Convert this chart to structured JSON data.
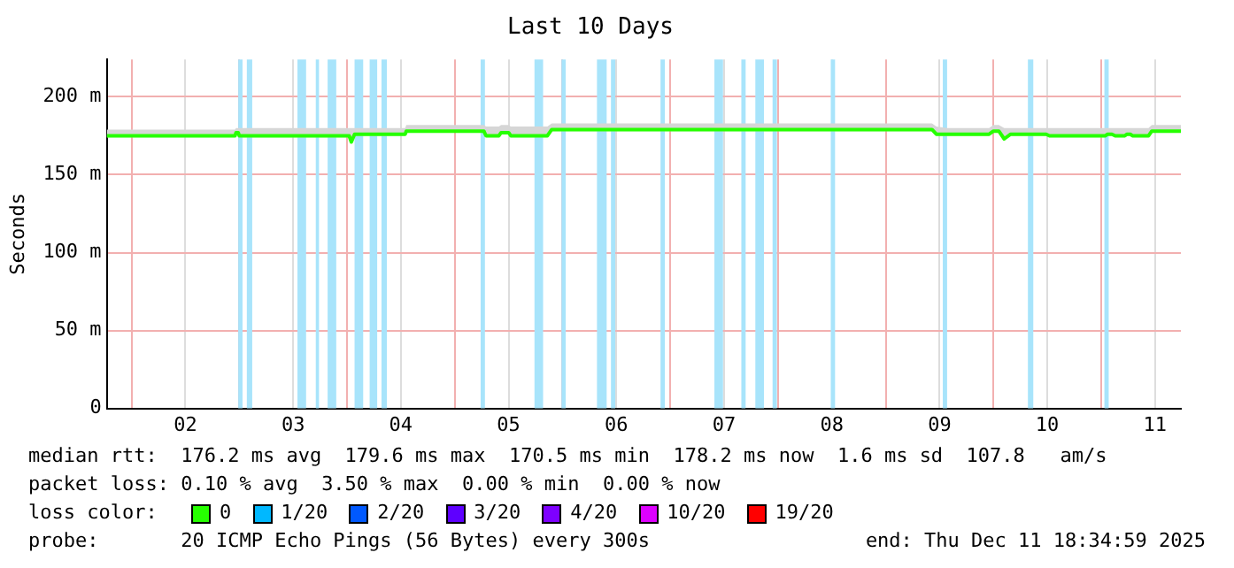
{
  "chart_data": {
    "type": "line",
    "title": "Last 10 Days",
    "ylabel": "Seconds",
    "legend_title": "loss color:",
    "legend": "bottom",
    "xlim": [
      1.77,
      11.74
    ],
    "xticks": [
      {
        "value": 2,
        "label": null
      },
      {
        "value": 2.5,
        "label": "02"
      },
      {
        "value": 3,
        "label": null
      },
      {
        "value": 3.5,
        "label": "03"
      },
      {
        "value": 4,
        "label": null
      },
      {
        "value": 4.5,
        "label": "04"
      },
      {
        "value": 5,
        "label": null
      },
      {
        "value": 5.5,
        "label": "05"
      },
      {
        "value": 6,
        "label": null
      },
      {
        "value": 6.5,
        "label": "06"
      },
      {
        "value": 7,
        "label": null
      },
      {
        "value": 7.5,
        "label": "07"
      },
      {
        "value": 8,
        "label": null
      },
      {
        "value": 8.5,
        "label": "08"
      },
      {
        "value": 9,
        "label": null
      },
      {
        "value": 9.5,
        "label": "09"
      },
      {
        "value": 10,
        "label": null
      },
      {
        "value": 10.5,
        "label": "10"
      },
      {
        "value": 11,
        "label": null
      },
      {
        "value": 11.5,
        "label": "11"
      }
    ],
    "ylim": [
      0,
      224
    ],
    "yticks": [
      0,
      {
        "value": 50,
        "label": "50 m"
      },
      {
        "value": 100,
        "label": "100 m"
      },
      {
        "value": 150,
        "label": "150 m"
      },
      {
        "value": 200,
        "label": "200 m"
      }
    ],
    "grid": true,
    "series": [
      {
        "name": "0",
        "color": "#26ff00",
        "x": [
          1.77,
          2.96,
          2.97,
          2.99,
          3.0,
          4.02,
          4.04,
          4.07,
          4.54,
          4.55,
          5.27,
          5.29,
          5.41,
          5.43,
          5.5,
          5.52,
          5.86,
          5.9,
          9.43,
          9.47,
          9.57,
          9.96,
          10.0,
          10.05,
          10.1,
          10.16,
          10.49,
          10.52,
          11.04,
          11.06,
          11.1,
          11.13,
          11.22,
          11.24,
          11.27,
          11.29,
          11.44,
          11.47,
          11.74
        ],
        "values": [
          175,
          175,
          177,
          177,
          175,
          175,
          171,
          176,
          176,
          178,
          178,
          175,
          175,
          177,
          177,
          175,
          175,
          179,
          179,
          176,
          176,
          176,
          178,
          178,
          173,
          176,
          176,
          175,
          175,
          176,
          176,
          175,
          175,
          176,
          176,
          175,
          175,
          178,
          178
        ],
        "lower": [
          174,
          174,
          176,
          176,
          174,
          174,
          170,
          175,
          175,
          177,
          177,
          174,
          174,
          176,
          176,
          174,
          174,
          178,
          178,
          175,
          175,
          175,
          177,
          177,
          172,
          175,
          175,
          174,
          174,
          175,
          175,
          174,
          174,
          175,
          175,
          174,
          174,
          177,
          177
        ],
        "upper": [
          179,
          179,
          180,
          180,
          180,
          180,
          180,
          180,
          180,
          182,
          182,
          181,
          181,
          182,
          182,
          181,
          181,
          183,
          183,
          181,
          180,
          180,
          182,
          182,
          180,
          180,
          180,
          180,
          180,
          180,
          180,
          180,
          180,
          180,
          180,
          180,
          180,
          182,
          182
        ]
      },
      {
        "name": "1/20",
        "color": "#00b8ff"
      },
      {
        "name": "2/20",
        "color": "#0059ff"
      },
      {
        "name": "3/20",
        "color": "#5e00ff"
      },
      {
        "name": "4/20",
        "color": "#7e00ff"
      },
      {
        "name": "10/20",
        "color": "#dd00ff"
      },
      {
        "name": "19/20",
        "color": "#ff0000"
      }
    ],
    "bands": [
      {
        "axis": "x",
        "from": 2.99,
        "to": 3.03,
        "color": "#a8e4fb"
      },
      {
        "axis": "x",
        "from": 3.07,
        "to": 3.12,
        "color": "#a8e4fb"
      },
      {
        "axis": "x",
        "from": 3.54,
        "to": 3.62,
        "color": "#a8e4fb"
      },
      {
        "axis": "x",
        "from": 3.71,
        "to": 3.74,
        "color": "#a8e4fb"
      },
      {
        "axis": "x",
        "from": 3.82,
        "to": 3.9,
        "color": "#a8e4fb"
      },
      {
        "axis": "x",
        "from": 4.07,
        "to": 4.15,
        "color": "#a8e4fb"
      },
      {
        "axis": "x",
        "from": 4.21,
        "to": 4.28,
        "color": "#a8e4fb"
      },
      {
        "axis": "x",
        "from": 4.32,
        "to": 4.37,
        "color": "#a8e4fb"
      },
      {
        "axis": "x",
        "from": 5.24,
        "to": 5.28,
        "color": "#a8e4fb"
      },
      {
        "axis": "x",
        "from": 5.74,
        "to": 5.82,
        "color": "#a8e4fb"
      },
      {
        "axis": "x",
        "from": 5.99,
        "to": 6.03,
        "color": "#a8e4fb"
      },
      {
        "axis": "x",
        "from": 6.32,
        "to": 6.41,
        "color": "#a8e4fb"
      },
      {
        "axis": "x",
        "from": 6.45,
        "to": 6.49,
        "color": "#a8e4fb"
      },
      {
        "axis": "x",
        "from": 6.91,
        "to": 6.95,
        "color": "#a8e4fb"
      },
      {
        "axis": "x",
        "from": 7.41,
        "to": 7.49,
        "color": "#a8e4fb"
      },
      {
        "axis": "x",
        "from": 7.66,
        "to": 7.7,
        "color": "#a8e4fb"
      },
      {
        "axis": "x",
        "from": 7.79,
        "to": 7.87,
        "color": "#a8e4fb"
      },
      {
        "axis": "x",
        "from": 7.95,
        "to": 7.99,
        "color": "#a8e4fb"
      },
      {
        "axis": "x",
        "from": 8.49,
        "to": 8.53,
        "color": "#a8e4fb"
      },
      {
        "axis": "x",
        "from": 9.53,
        "to": 9.57,
        "color": "#a8e4fb"
      },
      {
        "axis": "x",
        "from": 10.32,
        "to": 10.37,
        "color": "#a8e4fb"
      },
      {
        "axis": "x",
        "from": 11.03,
        "to": 11.07,
        "color": "#a8e4fb"
      }
    ],
    "annotations": [
      "median rtt:  176.2 ms avg  179.6 ms max  170.5 ms min  178.2 ms now  1.6 ms sd  107.8   am/s",
      "packet loss: 0.10 % avg  3.50 % max  0.00 % min  0.00 % now",
      "probe:       20 ICMP Echo Pings (56 Bytes) every 300s",
      "end: Thu Dec 11 18:34:59 2025"
    ]
  }
}
